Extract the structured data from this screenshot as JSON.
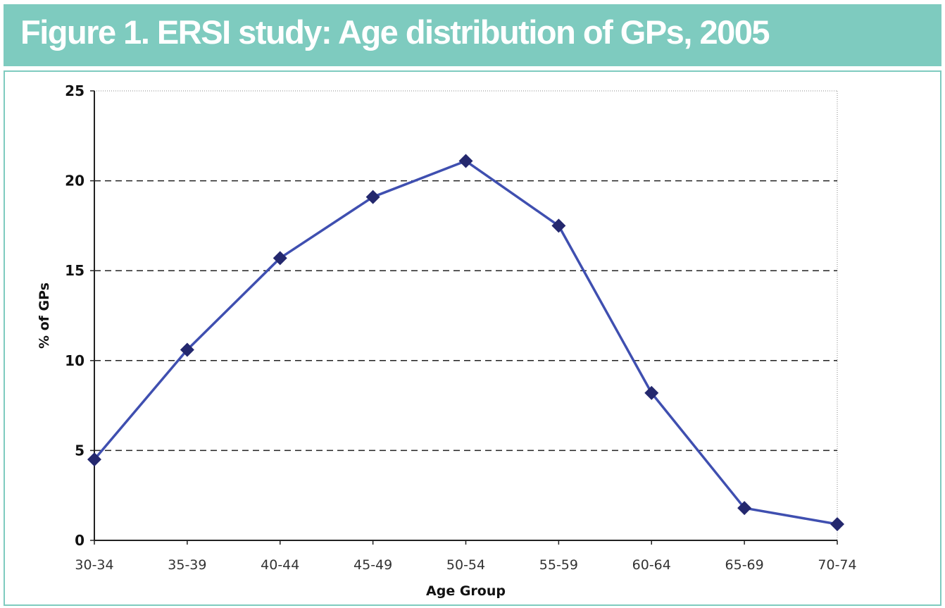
{
  "title": "Figure 1. ERSI study: Age distribution of GPs, 2005",
  "colors": {
    "header": "#7ecbbf",
    "line": "#3f4fb0",
    "marker": "#24286e"
  },
  "chart_data": {
    "type": "line",
    "title": "Figure 1. ERSI study: Age distribution of GPs, 2005",
    "xlabel": "Age Group",
    "ylabel": "% of GPs",
    "categories": [
      "30-34",
      "35-39",
      "40-44",
      "45-49",
      "50-54",
      "55-59",
      "60-64",
      "65-69",
      "70-74"
    ],
    "values": [
      4.5,
      10.6,
      15.7,
      19.1,
      21.1,
      17.5,
      8.2,
      1.8,
      0.9
    ],
    "ylim": [
      0,
      25
    ],
    "yticks": [
      0,
      5,
      10,
      15,
      20,
      25
    ],
    "grid": "horizontal dashed",
    "marker": "diamond",
    "legend": "none"
  }
}
